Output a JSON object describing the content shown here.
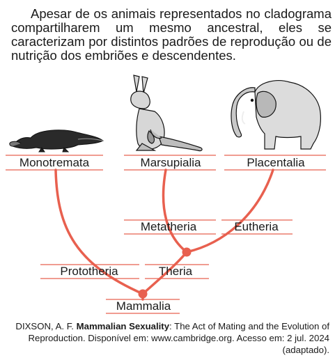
{
  "intro_text": "Apesar de os animais representados no cladograma compartilharem um mesmo ancestral, eles se caracterizam por distintos padrões de reprodução ou de nutrição dos embriões e descendentes.",
  "labels": {
    "monotremata": "Monotremata",
    "marsupialia": "Marsupialia",
    "placentalia": "Placentalia",
    "metatheria": "Metatheria",
    "eutheria": "Eutheria",
    "prototheria": "Prototheria",
    "theria": "Theria",
    "mammalia": "Mammalia"
  },
  "citation": {
    "author": "DIXSON, A. F. ",
    "book_title": "Mammalian Sexuality",
    "rest": ": The Act of Mating and the Evolution of Reproduction. Disponível em: www.cambridge.org. Acesso em: 2 jul. 2024 (adaptado)."
  },
  "colors": {
    "branch": "#e8604f",
    "text": "#1a1a1a"
  },
  "icons": [
    "platypus-icon",
    "kangaroo-icon",
    "elephant-icon"
  ]
}
